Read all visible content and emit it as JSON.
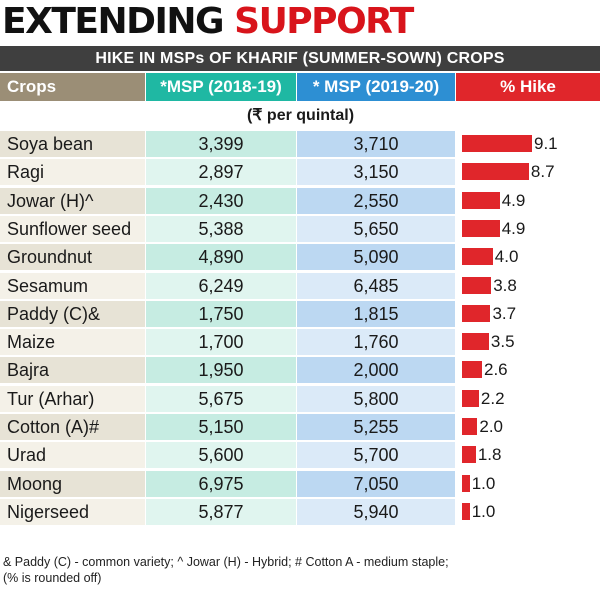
{
  "header": {
    "title_part1": "EXTENDING",
    "title_part2": "SUPPORT",
    "subtitle": "HIKE IN MSPs OF KHARIF  (SUMMER-SOWN) CROPS"
  },
  "colors": {
    "accent_red": "#e0262b",
    "msp_2018_header": "#1fb8a3",
    "msp_2019_header": "#2d8fd3",
    "crops_header": "#9b8e76"
  },
  "chart_data": {
    "type": "table",
    "columns": [
      "Crops",
      "*MSP (2018-19)",
      "* MSP (2019-20)",
      "% Hike"
    ],
    "unit": "(₹ per quintal)",
    "rows": [
      {
        "crop": "Soya bean",
        "msp_2018": "3,399",
        "msp_2019": "3,710",
        "hike": 9.1,
        "hike_label": "9.1"
      },
      {
        "crop": "Ragi",
        "msp_2018": "2,897",
        "msp_2019": "3,150",
        "hike": 8.7,
        "hike_label": "8.7"
      },
      {
        "crop": "Jowar (H)^",
        "msp_2018": "2,430",
        "msp_2019": "2,550",
        "hike": 4.9,
        "hike_label": "4.9"
      },
      {
        "crop": "Sunflower seed",
        "msp_2018": "5,388",
        "msp_2019": "5,650",
        "hike": 4.9,
        "hike_label": "4.9"
      },
      {
        "crop": "Groundnut",
        "msp_2018": "4,890",
        "msp_2019": "5,090",
        "hike": 4.0,
        "hike_label": "4.0"
      },
      {
        "crop": "Sesamum",
        "msp_2018": "6,249",
        "msp_2019": "6,485",
        "hike": 3.8,
        "hike_label": "3.8"
      },
      {
        "crop": "Paddy (C)&",
        "msp_2018": "1,750",
        "msp_2019": "1,815",
        "hike": 3.7,
        "hike_label": "3.7"
      },
      {
        "crop": "Maize",
        "msp_2018": "1,700",
        "msp_2019": "1,760",
        "hike": 3.5,
        "hike_label": "3.5"
      },
      {
        "crop": "Bajra",
        "msp_2018": "1,950",
        "msp_2019": "2,000",
        "hike": 2.6,
        "hike_label": "2.6"
      },
      {
        "crop": "Tur (Arhar)",
        "msp_2018": "5,675",
        "msp_2019": "5,800",
        "hike": 2.2,
        "hike_label": "2.2"
      },
      {
        "crop": "Cotton (A)#",
        "msp_2018": "5,150",
        "msp_2019": "5,255",
        "hike": 2.0,
        "hike_label": "2.0"
      },
      {
        "crop": "Urad",
        "msp_2018": "5,600",
        "msp_2019": "5,700",
        "hike": 1.8,
        "hike_label": "1.8"
      },
      {
        "crop": "Moong",
        "msp_2018": "6,975",
        "msp_2019": "7,050",
        "hike": 1.0,
        "hike_label": "1.0"
      },
      {
        "crop": "Nigerseed",
        "msp_2018": "5,877",
        "msp_2019": "5,940",
        "hike": 1.0,
        "hike_label": "1.0"
      }
    ]
  },
  "footnote": {
    "line1": "& Paddy (C) - common variety; ^ Jowar (H) - Hybrid; # Cotton A - medium staple;",
    "line2": "(% is rounded off)"
  }
}
